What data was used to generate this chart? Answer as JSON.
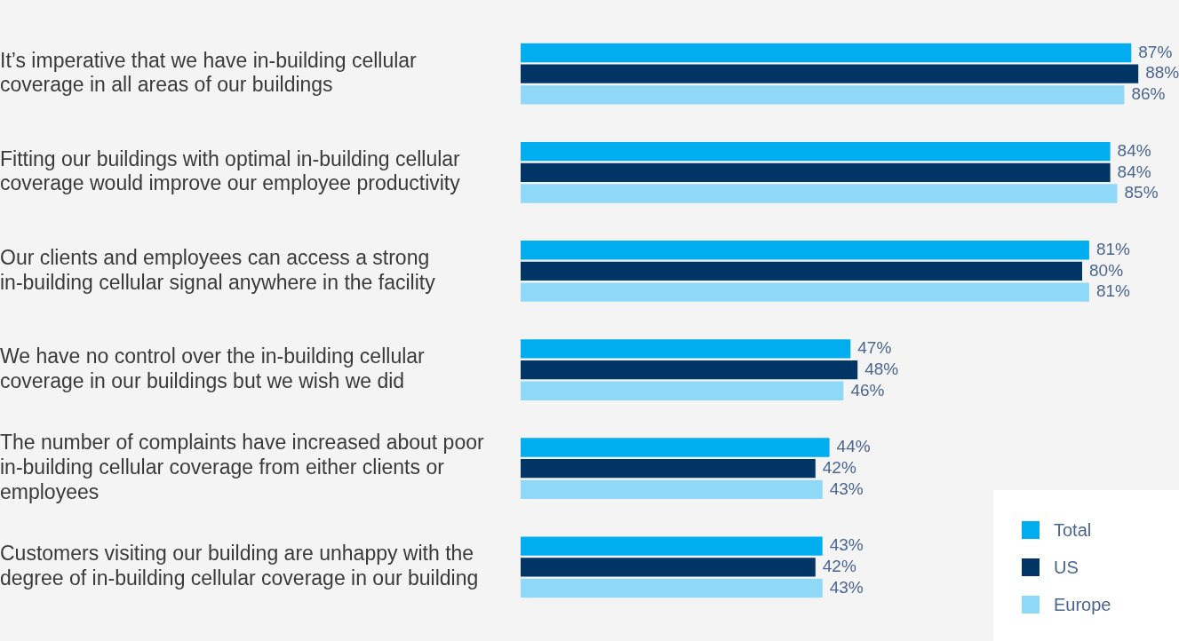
{
  "chart_data": {
    "type": "bar",
    "orientation": "horizontal",
    "legend": "bottom right",
    "categories": [
      "It’s imperative that we have in-building cellular coverage in all areas of our buildings",
      "Fitting our buildings with optimal in-building cellular coverage would improve our employee productivity",
      "Our clients and employees can access a strong in-building cellular signal anywhere in the facility",
      "We have no control over the in-building cellular coverage in our buildings but we wish we did",
      "The number of complaints have increased about poor in-building cellular coverage from either clients or employees",
      "Customers visiting our building are unhappy with the degree of in-building cellular coverage in our building"
    ],
    "series": [
      {
        "name": "Total",
        "color": "#00aeef",
        "values": [
          87,
          84,
          81,
          47,
          44,
          43
        ],
        "value_labels": [
          "87%",
          "84%",
          "81%",
          "47%",
          "44%",
          "43%"
        ]
      },
      {
        "name": "US",
        "color": "#003566",
        "values": [
          88,
          84,
          80,
          48,
          42,
          42
        ],
        "value_labels": [
          "88%",
          "84%",
          "80%",
          "48%",
          "42%",
          "42%"
        ]
      },
      {
        "name": "Europe",
        "color": "#8fd8f8",
        "values": [
          86,
          85,
          81,
          46,
          43,
          43
        ],
        "value_labels": [
          "86%",
          "85%",
          "81%",
          "46%",
          "43%",
          "43%"
        ]
      }
    ]
  }
}
